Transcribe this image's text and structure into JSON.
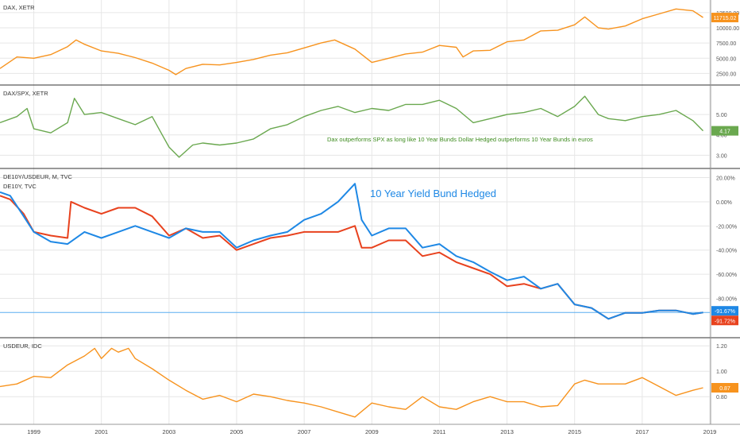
{
  "colors": {
    "dax": "#f7931e",
    "ratio": "#6aa84f",
    "bund_hedged": "#1e88e5",
    "bund_eur": "#e8421e",
    "usdeur": "#f7931e",
    "grid": "#e6e6e6",
    "divider": "#333333",
    "annotation_green": "#3d8b1e",
    "annotation_blue": "#1e88e5"
  },
  "x_axis": {
    "range": [
      1998,
      2019
    ],
    "ticks": [
      {
        "value": 1999,
        "label": "1999"
      },
      {
        "value": 2001,
        "label": "2001"
      },
      {
        "value": 2003,
        "label": "2003"
      },
      {
        "value": 2005,
        "label": "2005"
      },
      {
        "value": 2007,
        "label": "2007"
      },
      {
        "value": 2009,
        "label": "2009"
      },
      {
        "value": 2011,
        "label": "2011"
      },
      {
        "value": 2013,
        "label": "2013"
      },
      {
        "value": 2015,
        "label": "2015"
      },
      {
        "value": 2017,
        "label": "2017"
      },
      {
        "value": 2019,
        "label": "2019"
      }
    ]
  },
  "chart_data": [
    {
      "type": "line",
      "title": "DAX, XETR",
      "ylim": [
        1500,
        13800
      ],
      "yticks": [
        {
          "value": 2500,
          "label": "2500.00"
        },
        {
          "value": 5000,
          "label": "5000.00"
        },
        {
          "value": 7500,
          "label": "7500.00"
        },
        {
          "value": 10000,
          "label": "10000.00"
        },
        {
          "value": 12500,
          "label": "12500.00"
        }
      ],
      "last_value_label": "11715.02",
      "series": [
        {
          "name": "DAX",
          "color_key": "dax",
          "x": [
            1998.0,
            1998.5,
            1999.0,
            1999.5,
            2000.0,
            2000.25,
            2000.5,
            2001.0,
            2001.5,
            2002.0,
            2002.5,
            2003.0,
            2003.2,
            2003.5,
            2004.0,
            2004.5,
            2005.0,
            2005.5,
            2006.0,
            2006.5,
            2007.0,
            2007.5,
            2007.9,
            2008.5,
            2009.0,
            2009.5,
            2010.0,
            2010.5,
            2011.0,
            2011.5,
            2011.7,
            2012.0,
            2012.5,
            2013.0,
            2013.5,
            2014.0,
            2014.5,
            2015.0,
            2015.3,
            2015.7,
            2016.0,
            2016.5,
            2017.0,
            2017.5,
            2018.0,
            2018.5,
            2018.8
          ],
          "y": [
            3300,
            5200,
            5000,
            5600,
            6900,
            8000,
            7300,
            6200,
            5800,
            5100,
            4200,
            3000,
            2300,
            3300,
            4000,
            3900,
            4300,
            4800,
            5500,
            5900,
            6700,
            7500,
            8000,
            6500,
            4300,
            5000,
            5700,
            6000,
            7100,
            6800,
            5200,
            6200,
            6300,
            7700,
            8000,
            9500,
            9600,
            10500,
            11800,
            10000,
            9800,
            10300,
            11500,
            12300,
            13100,
            12800,
            11700
          ]
        }
      ]
    },
    {
      "type": "line",
      "title": "DAX/SPX, XETR",
      "ylim": [
        2.7,
        6.1
      ],
      "yticks": [
        {
          "value": 3,
          "label": "3.00"
        },
        {
          "value": 4,
          "label": "4.00"
        },
        {
          "value": 5,
          "label": "5.00"
        }
      ],
      "last_value_label": "4.17",
      "annotation": "Dax outperforms SPX as long like 10 Year Bunds Dollar Hedged outperforms 10 Year Bunds in euros",
      "series": [
        {
          "name": "DAX/SPX",
          "color_key": "ratio",
          "x": [
            1998.0,
            1998.5,
            1998.8,
            1999.0,
            1999.5,
            2000.0,
            2000.2,
            2000.5,
            2001.0,
            2001.5,
            2002.0,
            2002.5,
            2002.8,
            2003.0,
            2003.3,
            2003.7,
            2004.0,
            2004.5,
            2005.0,
            2005.5,
            2006.0,
            2006.5,
            2007.0,
            2007.5,
            2008.0,
            2008.5,
            2009.0,
            2009.5,
            2010.0,
            2010.5,
            2011.0,
            2011.5,
            2012.0,
            2012.5,
            2013.0,
            2013.5,
            2014.0,
            2014.5,
            2015.0,
            2015.3,
            2015.7,
            2016.0,
            2016.5,
            2017.0,
            2017.5,
            2018.0,
            2018.5,
            2018.8
          ],
          "y": [
            4.6,
            4.9,
            5.3,
            4.3,
            4.1,
            4.6,
            5.8,
            5.0,
            5.1,
            4.8,
            4.5,
            4.9,
            4.0,
            3.4,
            2.9,
            3.5,
            3.6,
            3.5,
            3.6,
            3.8,
            4.3,
            4.5,
            4.9,
            5.2,
            5.4,
            5.1,
            5.3,
            5.2,
            5.5,
            5.5,
            5.7,
            5.3,
            4.6,
            4.8,
            5.0,
            5.1,
            5.3,
            4.9,
            5.4,
            5.9,
            5.0,
            4.8,
            4.7,
            4.9,
            5.0,
            5.2,
            4.7,
            4.2
          ]
        }
      ]
    },
    {
      "type": "line",
      "title": "DE10Y/USDEUR, M, TVC",
      "subtitle": "DE10Y, TVC",
      "ylim": [
        -108,
        23
      ],
      "yticks": [
        {
          "value": 20,
          "label": "20.00%"
        },
        {
          "value": 0,
          "label": "0.00%"
        },
        {
          "value": -20,
          "label": "-20.00%"
        },
        {
          "value": -40,
          "label": "-40.00%"
        },
        {
          "value": -60,
          "label": "-60.00%"
        },
        {
          "value": -80,
          "label": "-80.00%"
        }
      ],
      "annotation": "10 Year Yield Bund Hedged",
      "reference_line": -91.67,
      "last_value_labels": [
        "-91.67%",
        "-91.72%"
      ],
      "series": [
        {
          "name": "DE10Y/USDEUR",
          "color_key": "bund_hedged",
          "x": [
            1998.0,
            1998.3,
            1998.7,
            1999.0,
            1999.5,
            2000.0,
            2000.5,
            2001.0,
            2001.5,
            2002.0,
            2002.5,
            2003.0,
            2003.5,
            2004.0,
            2004.5,
            2005.0,
            2005.5,
            2006.0,
            2006.5,
            2007.0,
            2007.5,
            2008.0,
            2008.5,
            2008.7,
            2009.0,
            2009.5,
            2010.0,
            2010.5,
            2011.0,
            2011.5,
            2012.0,
            2012.5,
            2013.0,
            2013.5,
            2014.0,
            2014.5,
            2015.0,
            2015.5,
            2016.0,
            2016.5,
            2017.0,
            2017.5,
            2018.0,
            2018.5,
            2018.8
          ],
          "y": [
            8,
            5,
            -12,
            -25,
            -33,
            -35,
            -25,
            -30,
            -25,
            -20,
            -25,
            -30,
            -22,
            -25,
            -25,
            -38,
            -32,
            -28,
            -25,
            -15,
            -10,
            0,
            15,
            -15,
            -28,
            -22,
            -22,
            -38,
            -35,
            -45,
            -50,
            -58,
            -65,
            -62,
            -72,
            -68,
            -85,
            -88,
            -97,
            -92,
            -92,
            -90,
            -90,
            -93,
            -91.67
          ]
        },
        {
          "name": "DE10Y",
          "color_key": "bund_eur",
          "x": [
            1998.0,
            1998.3,
            1998.7,
            1999.0,
            1999.5,
            2000.0,
            2000.1,
            2000.5,
            2001.0,
            2001.5,
            2002.0,
            2002.5,
            2003.0,
            2003.5,
            2004.0,
            2004.5,
            2005.0,
            2005.5,
            2006.0,
            2006.5,
            2007.0,
            2007.5,
            2008.0,
            2008.5,
            2008.7,
            2009.0,
            2009.5,
            2010.0,
            2010.5,
            2011.0,
            2011.5,
            2012.0,
            2012.5,
            2013.0,
            2013.5,
            2014.0,
            2014.5,
            2015.0,
            2015.5,
            2016.0,
            2016.5,
            2017.0,
            2017.5,
            2018.0,
            2018.5,
            2018.8
          ],
          "y": [
            5,
            2,
            -10,
            -25,
            -28,
            -30,
            0,
            -5,
            -10,
            -5,
            -5,
            -12,
            -28,
            -22,
            -30,
            -28,
            -40,
            -35,
            -30,
            -28,
            -25,
            -25,
            -25,
            -20,
            -38,
            -38,
            -32,
            -32,
            -45,
            -42,
            -50,
            -55,
            -60,
            -70,
            -68,
            -72,
            -68,
            -85,
            -88,
            -97,
            -92,
            -92,
            -90,
            -90,
            -93,
            -91.72
          ]
        }
      ]
    },
    {
      "type": "line",
      "title": "USDEUR, IDC",
      "ylim": [
        0.62,
        1.22
      ],
      "yticks": [
        {
          "value": 0.8,
          "label": "0.80"
        },
        {
          "value": 1.0,
          "label": "1.00"
        },
        {
          "value": 1.2,
          "label": "1.20"
        }
      ],
      "last_value_label": "0.87",
      "series": [
        {
          "name": "USDEUR",
          "color_key": "usdeur",
          "x": [
            1998.0,
            1998.5,
            1999.0,
            1999.5,
            2000.0,
            2000.5,
            2000.8,
            2001.0,
            2001.3,
            2001.5,
            2001.8,
            2002.0,
            2002.5,
            2003.0,
            2003.5,
            2004.0,
            2004.5,
            2005.0,
            2005.5,
            2006.0,
            2006.5,
            2007.0,
            2007.5,
            2008.0,
            2008.5,
            2009.0,
            2009.5,
            2010.0,
            2010.5,
            2011.0,
            2011.5,
            2012.0,
            2012.5,
            2013.0,
            2013.5,
            2014.0,
            2014.5,
            2015.0,
            2015.3,
            2015.7,
            2016.0,
            2016.5,
            2017.0,
            2017.5,
            2018.0,
            2018.5,
            2018.8
          ],
          "y": [
            0.88,
            0.9,
            0.96,
            0.95,
            1.05,
            1.12,
            1.18,
            1.1,
            1.18,
            1.15,
            1.18,
            1.1,
            1.02,
            0.93,
            0.85,
            0.78,
            0.81,
            0.76,
            0.82,
            0.8,
            0.77,
            0.75,
            0.72,
            0.68,
            0.64,
            0.75,
            0.72,
            0.7,
            0.8,
            0.72,
            0.7,
            0.76,
            0.8,
            0.76,
            0.76,
            0.72,
            0.73,
            0.9,
            0.93,
            0.9,
            0.9,
            0.9,
            0.95,
            0.88,
            0.81,
            0.85,
            0.87
          ]
        }
      ]
    }
  ]
}
